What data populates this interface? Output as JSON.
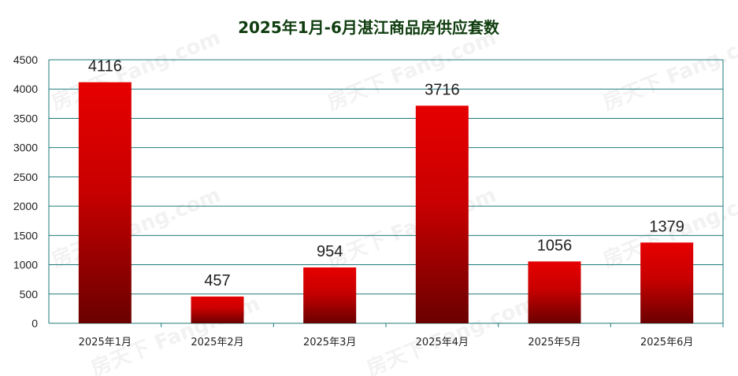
{
  "chart_data": {
    "type": "bar",
    "title": "2025年1月-6月湛江商品房供应套数",
    "categories": [
      "2025年1月",
      "2025年2月",
      "2025年3月",
      "2025年4月",
      "2025年5月",
      "2025年6月"
    ],
    "values": [
      4116,
      457,
      954,
      3716,
      1056,
      1379
    ],
    "yticks": [
      0,
      500,
      1000,
      1500,
      2000,
      2500,
      3000,
      3500,
      4000,
      4500
    ],
    "ylim": [
      0,
      4500
    ],
    "grid": true,
    "data_labels": true
  },
  "colors": {
    "bar_top": "#e60000",
    "bar_mid": "#c80000",
    "bar_bottom": "#6a0000",
    "grid": "#1f7a7a",
    "frame": "#1f7a7a",
    "title": "#0f3d0f"
  },
  "watermark": "房天下 Fang.com"
}
